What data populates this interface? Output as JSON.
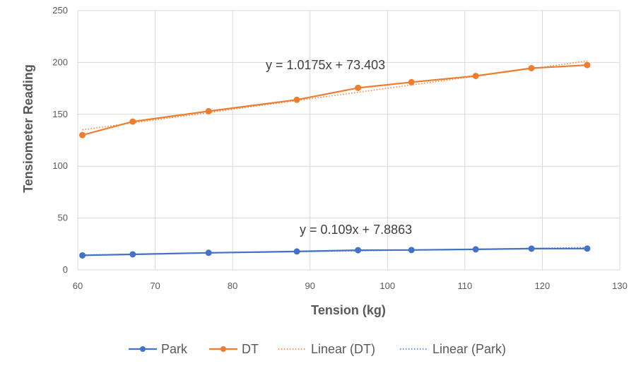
{
  "chart_data": {
    "type": "line",
    "title": "",
    "xlabel": "Tension (kg)",
    "ylabel": "Tensiometer Reading",
    "xlim": [
      60,
      130
    ],
    "ylim": [
      0,
      250
    ],
    "x_ticks": [
      "60",
      "70",
      "80",
      "90",
      "100",
      "110",
      "120",
      "130"
    ],
    "y_ticks": [
      "0",
      "50",
      "100",
      "150",
      "200",
      "250"
    ],
    "grid": true,
    "legend_position": "bottom",
    "series": [
      {
        "name": "Park",
        "color": "#4472C4",
        "marker": "circle",
        "x": [
          60.6,
          67.1,
          76.9,
          88.3,
          96.2,
          103.1,
          111.4,
          118.6,
          125.8
        ],
        "y": [
          14,
          15,
          16.5,
          17.8,
          19,
          19.2,
          19.8,
          20.5,
          20.6
        ]
      },
      {
        "name": "DT",
        "color": "#ED7D31",
        "marker": "circle",
        "x": [
          60.6,
          67.1,
          76.9,
          88.3,
          96.2,
          103.1,
          111.4,
          118.6,
          125.8
        ],
        "y": [
          130,
          143,
          153,
          164,
          175.5,
          181,
          187,
          194.5,
          197.5
        ]
      }
    ],
    "trendlines": [
      {
        "name": "Linear (DT)",
        "color": "#ED7D31",
        "slope": 1.0175,
        "intercept": 73.403,
        "equation": "y = 1.0175x + 73.403"
      },
      {
        "name": "Linear (Park)",
        "color": "#4472C4",
        "slope": 0.109,
        "intercept": 7.8863,
        "equation": "y = 0.109x + 7.8863"
      }
    ]
  }
}
